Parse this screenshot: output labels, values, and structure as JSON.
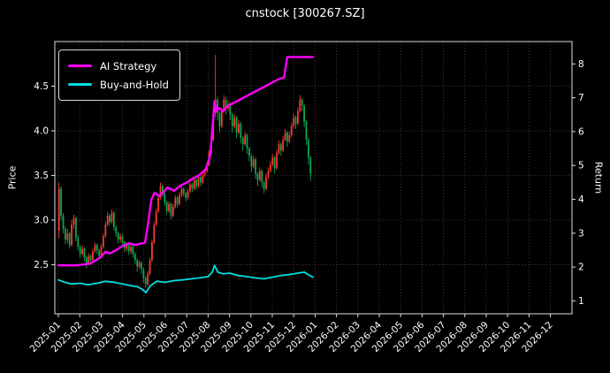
{
  "figure": {
    "title": "cnstock [300267.SZ]",
    "ylabel_left": "Price",
    "ylabel_right": "Return",
    "background": "#000000"
  },
  "legend": {
    "items": [
      {
        "label": "AI Strategy",
        "color": "#ff00ff"
      },
      {
        "label": "Buy-and-Hold",
        "color": "#00dfe0"
      }
    ]
  },
  "chart_data": {
    "type": "candlestick+line",
    "title": "cnstock [300267.SZ]",
    "grid": true,
    "legend_position": "upper left",
    "x_tick_labels": [
      "2025-01",
      "2025-02",
      "2025-03",
      "2025-04",
      "2025-05",
      "2025-06",
      "2025-07",
      "2025-08",
      "2025-09",
      "2025-10",
      "2025-11",
      "2025-12",
      "2026-01",
      "2026-02",
      "2026-03",
      "2026-04",
      "2026-05",
      "2026-06",
      "2026-07",
      "2026-08",
      "2026-09",
      "2026-10",
      "2026-11",
      "2026-12"
    ],
    "price_axis": {
      "label": "Price",
      "ticks": [
        2.5,
        3.0,
        3.5,
        4.0,
        4.5
      ],
      "range": [
        1.95,
        5.0
      ]
    },
    "return_axis": {
      "label": "Return",
      "ticks": [
        1,
        2,
        3,
        4,
        5,
        6,
        7,
        8
      ],
      "range": [
        0.62,
        8.66
      ]
    },
    "candles": {
      "up_color": "#f73b2e",
      "down_color": "#0ca750",
      "start_month": 0.03,
      "month_step": 0.0988,
      "ohlc": [
        [
          2.88,
          3.42,
          2.8,
          3.35
        ],
        [
          3.35,
          3.38,
          3.0,
          3.05
        ],
        [
          3.05,
          3.08,
          2.85,
          2.9
        ],
        [
          2.9,
          2.93,
          2.73,
          2.78
        ],
        [
          2.78,
          2.9,
          2.74,
          2.85
        ],
        [
          2.85,
          2.87,
          2.68,
          2.72
        ],
        [
          2.72,
          3.0,
          2.7,
          2.95
        ],
        [
          2.95,
          3.06,
          2.9,
          3.02
        ],
        [
          3.02,
          3.04,
          2.76,
          2.8
        ],
        [
          2.8,
          2.83,
          2.66,
          2.7
        ],
        [
          2.7,
          2.72,
          2.58,
          2.62
        ],
        [
          2.62,
          2.72,
          2.6,
          2.68
        ],
        [
          2.68,
          2.7,
          2.54,
          2.58
        ],
        [
          2.58,
          2.6,
          2.46,
          2.52
        ],
        [
          2.52,
          2.63,
          2.5,
          2.6
        ],
        [
          2.6,
          2.62,
          2.51,
          2.55
        ],
        [
          2.55,
          2.68,
          2.53,
          2.65
        ],
        [
          2.65,
          2.75,
          2.63,
          2.72
        ],
        [
          2.72,
          2.74,
          2.62,
          2.66
        ],
        [
          2.66,
          2.68,
          2.56,
          2.6
        ],
        [
          2.6,
          2.73,
          2.58,
          2.7
        ],
        [
          2.7,
          2.85,
          2.68,
          2.82
        ],
        [
          2.82,
          2.98,
          2.8,
          2.95
        ],
        [
          2.95,
          3.09,
          2.93,
          3.05
        ],
        [
          3.05,
          3.07,
          2.94,
          2.98
        ],
        [
          2.98,
          3.12,
          2.96,
          3.08
        ],
        [
          3.08,
          3.1,
          2.88,
          2.92
        ],
        [
          2.92,
          2.94,
          2.81,
          2.85
        ],
        [
          2.85,
          2.87,
          2.74,
          2.78
        ],
        [
          2.78,
          2.85,
          2.75,
          2.82
        ],
        [
          2.82,
          2.84,
          2.71,
          2.75
        ],
        [
          2.75,
          2.77,
          2.64,
          2.68
        ],
        [
          2.68,
          2.75,
          2.65,
          2.72
        ],
        [
          2.72,
          2.74,
          2.61,
          2.65
        ],
        [
          2.65,
          2.73,
          2.62,
          2.7
        ],
        [
          2.7,
          2.72,
          2.58,
          2.62
        ],
        [
          2.62,
          2.64,
          2.51,
          2.55
        ],
        [
          2.55,
          2.57,
          2.42,
          2.48
        ],
        [
          2.48,
          2.55,
          2.45,
          2.52
        ],
        [
          2.52,
          2.54,
          2.4,
          2.45
        ],
        [
          2.45,
          2.47,
          2.3,
          2.35
        ],
        [
          2.35,
          2.37,
          2.24,
          2.28
        ],
        [
          2.28,
          2.43,
          2.26,
          2.4
        ],
        [
          2.4,
          2.58,
          2.38,
          2.55
        ],
        [
          2.55,
          2.78,
          2.53,
          2.75
        ],
        [
          2.75,
          2.98,
          2.73,
          2.95
        ],
        [
          2.95,
          3.13,
          2.93,
          3.1
        ],
        [
          3.1,
          3.28,
          3.08,
          3.25
        ],
        [
          3.25,
          3.42,
          3.23,
          3.38
        ],
        [
          3.38,
          3.4,
          3.26,
          3.3
        ],
        [
          3.3,
          3.32,
          3.16,
          3.2
        ],
        [
          3.2,
          3.22,
          3.06,
          3.1
        ],
        [
          3.1,
          3.21,
          3.08,
          3.18
        ],
        [
          3.18,
          3.2,
          3.01,
          3.05
        ],
        [
          3.05,
          3.18,
          3.03,
          3.15
        ],
        [
          3.15,
          3.28,
          3.13,
          3.25
        ],
        [
          3.25,
          3.27,
          3.14,
          3.18
        ],
        [
          3.18,
          3.31,
          3.16,
          3.28
        ],
        [
          3.28,
          3.38,
          3.26,
          3.35
        ],
        [
          3.35,
          3.37,
          3.26,
          3.3
        ],
        [
          3.3,
          3.32,
          3.21,
          3.25
        ],
        [
          3.25,
          3.35,
          3.23,
          3.32
        ],
        [
          3.32,
          3.43,
          3.3,
          3.4
        ],
        [
          3.4,
          3.42,
          3.31,
          3.35
        ],
        [
          3.35,
          3.48,
          3.33,
          3.45
        ],
        [
          3.45,
          3.47,
          3.34,
          3.38
        ],
        [
          3.38,
          3.51,
          3.36,
          3.48
        ],
        [
          3.48,
          3.5,
          3.38,
          3.42
        ],
        [
          3.42,
          3.53,
          3.4,
          3.5
        ],
        [
          3.5,
          3.58,
          3.48,
          3.55
        ],
        [
          3.55,
          3.65,
          3.53,
          3.62
        ],
        [
          3.62,
          3.78,
          3.6,
          3.75
        ],
        [
          3.75,
          3.93,
          3.73,
          3.9
        ],
        [
          3.9,
          4.25,
          3.88,
          4.2
        ],
        [
          4.2,
          4.85,
          4.15,
          4.35
        ],
        [
          4.35,
          4.38,
          4.12,
          4.2
        ],
        [
          4.2,
          4.22,
          3.98,
          4.05
        ],
        [
          4.05,
          4.26,
          4.03,
          4.22
        ],
        [
          4.22,
          4.4,
          4.2,
          4.35
        ],
        [
          4.35,
          4.38,
          4.18,
          4.25
        ],
        [
          4.25,
          4.34,
          4.22,
          4.3
        ],
        [
          4.3,
          4.32,
          4.12,
          4.18
        ],
        [
          4.18,
          4.2,
          3.98,
          4.05
        ],
        [
          4.05,
          4.19,
          4.03,
          4.15
        ],
        [
          4.15,
          4.17,
          3.92,
          3.98
        ],
        [
          3.98,
          4.12,
          3.96,
          4.08
        ],
        [
          4.08,
          4.1,
          3.86,
          3.92
        ],
        [
          3.92,
          3.94,
          3.78,
          3.85
        ],
        [
          3.85,
          3.99,
          3.83,
          3.95
        ],
        [
          3.95,
          3.97,
          3.74,
          3.8
        ],
        [
          3.8,
          3.82,
          3.66,
          3.72
        ],
        [
          3.72,
          3.74,
          3.54,
          3.6
        ],
        [
          3.6,
          3.72,
          3.58,
          3.68
        ],
        [
          3.68,
          3.7,
          3.46,
          3.52
        ],
        [
          3.52,
          3.54,
          3.38,
          3.45
        ],
        [
          3.45,
          3.59,
          3.43,
          3.55
        ],
        [
          3.55,
          3.57,
          3.36,
          3.42
        ],
        [
          3.42,
          3.44,
          3.3,
          3.35
        ],
        [
          3.35,
          3.52,
          3.33,
          3.48
        ],
        [
          3.48,
          3.59,
          3.46,
          3.55
        ],
        [
          3.55,
          3.66,
          3.53,
          3.62
        ],
        [
          3.62,
          3.74,
          3.6,
          3.7
        ],
        [
          3.7,
          3.72,
          3.52,
          3.58
        ],
        [
          3.58,
          3.79,
          3.56,
          3.75
        ],
        [
          3.75,
          3.89,
          3.73,
          3.85
        ],
        [
          3.85,
          3.87,
          3.72,
          3.78
        ],
        [
          3.78,
          3.94,
          3.76,
          3.9
        ],
        [
          3.9,
          4.02,
          3.88,
          3.98
        ],
        [
          3.98,
          4.0,
          3.82,
          3.88
        ],
        [
          3.88,
          3.99,
          3.86,
          3.95
        ],
        [
          3.95,
          4.09,
          3.93,
          4.05
        ],
        [
          4.05,
          4.19,
          4.03,
          4.15
        ],
        [
          4.15,
          4.17,
          4.02,
          4.08
        ],
        [
          4.08,
          4.26,
          4.06,
          4.22
        ],
        [
          4.22,
          4.4,
          4.2,
          4.35
        ],
        [
          4.35,
          4.37,
          4.22,
          4.28
        ],
        [
          4.28,
          4.3,
          4.04,
          4.1
        ],
        [
          4.1,
          4.12,
          3.84,
          3.9
        ],
        [
          3.9,
          3.92,
          3.62,
          3.7
        ],
        [
          3.7,
          3.72,
          3.44,
          3.52
        ]
      ]
    },
    "series": [
      {
        "name": "AI Strategy",
        "axis": "return",
        "color": "#ff00ff",
        "width": 2.4,
        "x": [
          0.0,
          0.8,
          1.5,
          2.0,
          2.2,
          2.4,
          2.7,
          3.0,
          3.3,
          3.6,
          3.9,
          4.05,
          4.2,
          4.35,
          4.5,
          4.7,
          4.9,
          5.1,
          5.4,
          5.7,
          6.0,
          6.3,
          6.6,
          6.9,
          7.1,
          7.3,
          7.4,
          7.5,
          7.7,
          7.9,
          8.2,
          8.5,
          8.8,
          9.1,
          9.4,
          9.7,
          10.0,
          10.3,
          10.55,
          10.7,
          10.75,
          11.0,
          11.3,
          11.6,
          11.9
        ],
        "y": [
          2.05,
          2.05,
          2.1,
          2.3,
          2.45,
          2.4,
          2.5,
          2.62,
          2.7,
          2.65,
          2.7,
          2.72,
          3.3,
          4.0,
          4.2,
          4.1,
          4.2,
          4.35,
          4.25,
          4.4,
          4.5,
          4.62,
          4.72,
          4.9,
          5.3,
          6.9,
          6.6,
          6.7,
          6.6,
          6.75,
          6.85,
          6.95,
          7.05,
          7.15,
          7.25,
          7.35,
          7.45,
          7.55,
          7.6,
          8.2,
          8.2,
          8.2,
          8.2,
          8.2,
          8.2
        ]
      },
      {
        "name": "Buy-and-Hold",
        "axis": "return",
        "color": "#00dfe0",
        "width": 1.8,
        "x": [
          0.0,
          0.3,
          0.6,
          1.0,
          1.4,
          1.8,
          2.2,
          2.6,
          3.0,
          3.4,
          3.7,
          3.9,
          4.1,
          4.3,
          4.6,
          5.0,
          5.4,
          5.8,
          6.2,
          6.6,
          7.0,
          7.2,
          7.3,
          7.45,
          7.7,
          8.0,
          8.4,
          8.8,
          9.2,
          9.6,
          10.0,
          10.4,
          10.8,
          11.2,
          11.5,
          11.75,
          11.9
        ],
        "y": [
          1.62,
          1.55,
          1.5,
          1.52,
          1.48,
          1.52,
          1.58,
          1.55,
          1.5,
          1.45,
          1.42,
          1.35,
          1.25,
          1.45,
          1.58,
          1.55,
          1.6,
          1.62,
          1.65,
          1.68,
          1.72,
          1.85,
          2.05,
          1.85,
          1.8,
          1.82,
          1.75,
          1.72,
          1.68,
          1.65,
          1.7,
          1.75,
          1.78,
          1.82,
          1.85,
          1.75,
          1.7
        ]
      }
    ]
  }
}
